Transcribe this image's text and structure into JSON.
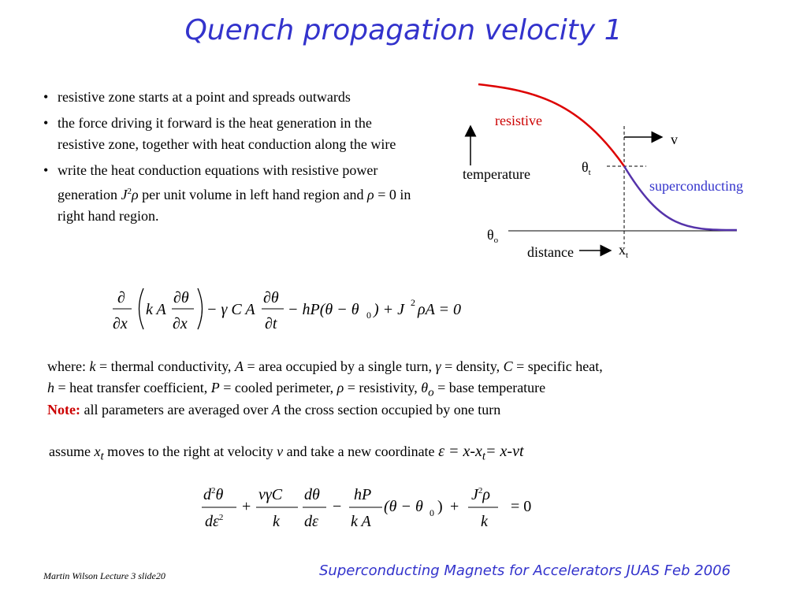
{
  "title": "Quench propagation velocity 1",
  "bullets": [
    "resistive zone starts at a point and spreads outwards",
    "the force driving it forward is the heat generation in the resistive  zone, together with heat conduction along the wire",
    {
      "prefix": "write the heat conduction equations with resistive power generation ",
      "J": "J",
      "exp": "2",
      "rho": "ρ",
      "middle": "  per unit volume in left hand region and ",
      "rho2": "ρ",
      "suffix": " = 0 in right hand region."
    }
  ],
  "diagram": {
    "label_resistive": "resistive",
    "label_superconducting": "superconducting",
    "label_temperature": "temperature",
    "label_distance": "distance",
    "label_v": "v",
    "label_theta_t": "θ",
    "sub_t": "t",
    "label_theta_o": "θ",
    "sub_o": "o",
    "label_x_t": "x",
    "sub_xt": "t",
    "resistive_color": "#dd0000",
    "superconducting_color": "#5533aa",
    "label_red_color": "#cc0000",
    "label_blue_color": "#3333cc"
  },
  "equation1": {
    "partial": "∂",
    "x": "∂x",
    "kA": "k A",
    "dtheta": "∂θ",
    "gammaCA": "− γ C A",
    "dt": "∂t",
    "rest1": "− hP(θ − θ",
    "zero": "0",
    "rest2": ") + J",
    "two": "2",
    "rest3": "ρA = 0"
  },
  "where": {
    "w0": "where: ",
    "k": "k",
    "w1": " = thermal conductivity,  ",
    "A": "A",
    "w2": " = area occupied by a single turn, ",
    "gamma": "γ",
    "w3": " = density, ",
    "C": "C",
    "w4": " = specific heat,",
    "h": "h",
    "w5": " = heat transfer coefficient, ",
    "P": "P",
    "w6": " = cooled perimeter, ",
    "rho": "ρ",
    "w7": " = resistivity, ",
    "theta": "θ",
    "o": "o",
    "w8": " = base temperature"
  },
  "note": {
    "label": "Note:",
    "t1": " all parameters are averaged over ",
    "A": "A",
    "t2": " the cross section occupied by one turn"
  },
  "assume": {
    "t1": "assume ",
    "x": "x",
    "t": "t",
    "t2": " moves to the right at velocity ",
    "v": "v",
    "t3": " and take a new coordinate ",
    "eq1": "ε = x-x",
    "t4": "t",
    "eq2": "= x-vt"
  },
  "equation2": {
    "d2": "d",
    "two": "2",
    "theta": "θ",
    "deps": "dε",
    "vgC": "vγC",
    "k": "k",
    "dtheta": "dθ",
    "hP": "hP",
    "kA": "k A",
    "mid": "(θ − θ",
    "zero": "0",
    "close": ")",
    "J": "J",
    "rho": "ρ",
    "eqzero": "= 0",
    "plus": "+",
    "minus": "−"
  },
  "footer": {
    "left": "Martin Wilson Lecture 3 slide20",
    "right": "Superconducting Magnets for Accelerators JUAS Feb 2006"
  }
}
